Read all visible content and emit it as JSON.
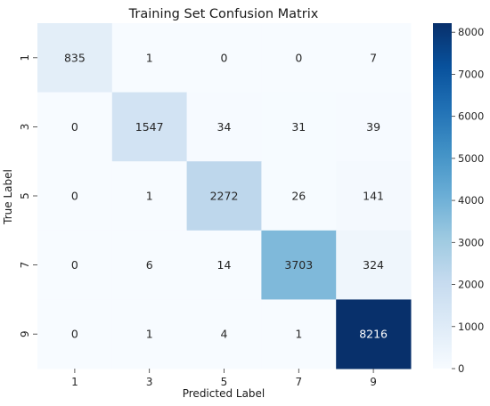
{
  "chart_data": {
    "type": "heatmap",
    "title": "Training Set Confusion Matrix",
    "xlabel": "Predicted Label",
    "ylabel": "True Label",
    "x_categories": [
      "1",
      "3",
      "5",
      "7",
      "9"
    ],
    "y_categories": [
      "1",
      "3",
      "5",
      "7",
      "9"
    ],
    "values": [
      [
        835,
        1,
        0,
        0,
        7
      ],
      [
        0,
        1547,
        34,
        31,
        39
      ],
      [
        0,
        1,
        2272,
        26,
        141
      ],
      [
        0,
        6,
        14,
        3703,
        324
      ],
      [
        0,
        1,
        4,
        1,
        8216
      ]
    ],
    "colormap": "Blues",
    "colorbar": {
      "range": [
        0,
        8216
      ],
      "ticks": [
        0,
        1000,
        2000,
        3000,
        4000,
        5000,
        6000,
        7000,
        8000
      ],
      "tick_labels": [
        "0",
        "1000",
        "2000",
        "3000",
        "4000",
        "5000",
        "6000",
        "7000",
        "8000"
      ]
    },
    "grid": false
  }
}
